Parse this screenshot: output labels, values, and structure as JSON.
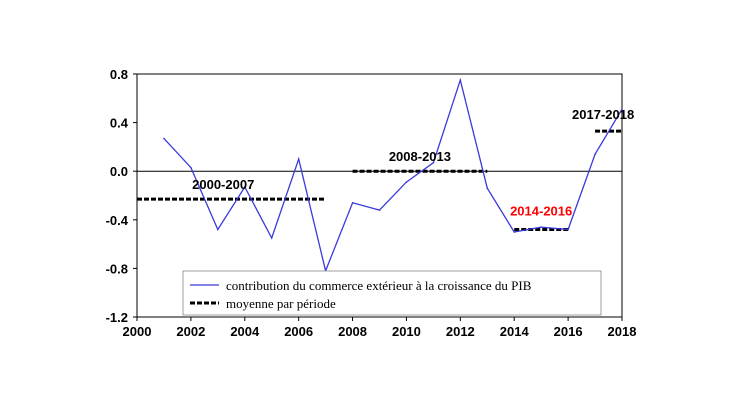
{
  "chart_data": {
    "type": "line",
    "xlim": [
      2000,
      2018
    ],
    "ylim": [
      -1.2,
      0.8
    ],
    "x_ticks": [
      2000,
      2002,
      2004,
      2006,
      2008,
      2010,
      2012,
      2014,
      2016,
      2018
    ],
    "y_ticks": [
      0.8,
      0.4,
      0.0,
      -0.4,
      -0.8,
      -1.2
    ],
    "y_tick_labels": [
      "0.8",
      "0.4",
      "0.0",
      "-0.4",
      "-0.8",
      "-1.2"
    ],
    "series": [
      {
        "name": "contribution du commerce extérieur à la croissance du PIB",
        "color": "#3a3adb",
        "x": [
          2001,
          2002,
          2003,
          2004,
          2005,
          2006,
          2007,
          2008,
          2009,
          2010,
          2011,
          2012,
          2013,
          2014,
          2015,
          2016,
          2017,
          2018
        ],
        "y": [
          0.27,
          0.03,
          -0.48,
          -0.13,
          -0.55,
          0.1,
          -0.82,
          -0.26,
          -0.32,
          -0.09,
          0.07,
          0.75,
          -0.14,
          -0.5,
          -0.46,
          -0.48,
          0.14,
          0.51
        ]
      }
    ],
    "period_means": {
      "name": "moyenne par période",
      "color": "#000000",
      "segments": [
        {
          "label": "2000-2007",
          "x_start": 2000,
          "x_end": 2007,
          "y": -0.23,
          "label_color": "#000000"
        },
        {
          "label": "2008-2013",
          "x_start": 2008,
          "x_end": 2013,
          "y": 0.0,
          "label_color": "#000000"
        },
        {
          "label": "2014-2016",
          "x_start": 2014,
          "x_end": 2016,
          "y": -0.48,
          "label_color": "#ff0000"
        },
        {
          "label": "2017-2018",
          "x_start": 2017,
          "x_end": 2018,
          "y": 0.33,
          "label_color": "#000000"
        }
      ]
    },
    "zero_line": true,
    "legend": {
      "placement": "bottom-left",
      "entries": [
        "contribution du commerce extérieur à la croissance du PIB",
        "moyenne par période"
      ]
    }
  }
}
